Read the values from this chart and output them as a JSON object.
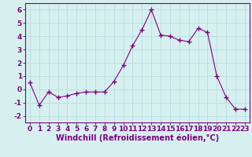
{
  "x": [
    0,
    1,
    2,
    3,
    4,
    5,
    6,
    7,
    8,
    9,
    10,
    11,
    12,
    13,
    14,
    15,
    16,
    17,
    18,
    19,
    20,
    21,
    22,
    23
  ],
  "y": [
    0.5,
    -1.2,
    -0.2,
    -0.6,
    -0.5,
    -0.3,
    -0.2,
    -0.2,
    -0.2,
    0.6,
    1.8,
    3.3,
    4.5,
    6.0,
    4.1,
    4.0,
    3.7,
    3.6,
    4.6,
    4.3,
    1.0,
    -0.6,
    -1.5,
    -1.5
  ],
  "xlim": [
    -0.5,
    23.5
  ],
  "ylim": [
    -2.5,
    6.5
  ],
  "yticks": [
    -2,
    -1,
    0,
    1,
    2,
    3,
    4,
    5,
    6
  ],
  "xticks": [
    0,
    1,
    2,
    3,
    4,
    5,
    6,
    7,
    8,
    9,
    10,
    11,
    12,
    13,
    14,
    15,
    16,
    17,
    18,
    19,
    20,
    21,
    22,
    23
  ],
  "xlabel": "Windchill (Refroidissement éolien,°C)",
  "line_color": "#800080",
  "marker": "+",
  "marker_size": 4,
  "bg_color": "#d6f0f0",
  "grid_color": "#b8dede",
  "label_fontsize": 7,
  "tick_fontsize": 6.5
}
